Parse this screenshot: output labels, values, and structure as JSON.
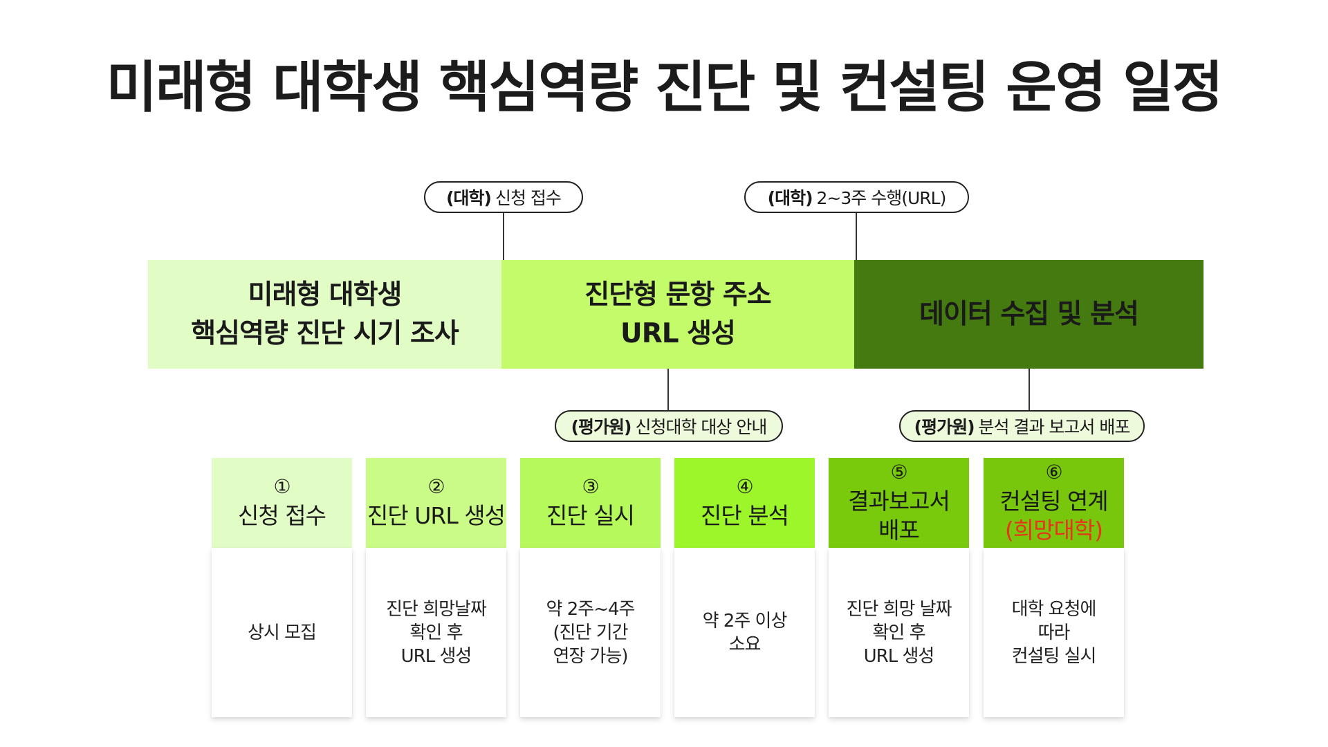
{
  "title": "미래형 대학생 핵심역량 진단 및 컨설팅 운영 일정",
  "top_pills": [
    {
      "tag": "(대학)",
      "text": "신청 접수"
    },
    {
      "tag": "(대학)",
      "text": "2~3주 수행(URL)"
    }
  ],
  "bands": [
    {
      "label": "미래형 대학생\n핵심역량 진단 시기 조사",
      "bg": "#e2fcc6",
      "color": "#1a1a1a"
    },
    {
      "label": "진단형 문항 주소\nURL 생성",
      "bg": "#c4fb6a",
      "color": "#1a1a1a"
    },
    {
      "label": "데이터 수집 및 분석",
      "bg": "#447a10",
      "color": "#1a1a1a"
    }
  ],
  "bottom_pills": [
    {
      "tag": "(평가원)",
      "text": "신청대학 대상 안내",
      "bg": "#eefadc"
    },
    {
      "tag": "(평가원)",
      "text": "분석 결과 보고서 배포",
      "bg": "#eefadc"
    }
  ],
  "steps": [
    {
      "num": "①",
      "title": "신청 접수",
      "title_accent": "",
      "desc": "상시 모집",
      "bg": "#e2fcc6"
    },
    {
      "num": "②",
      "title": "진단 URL 생성",
      "title_accent": "",
      "desc": "진단 희망날짜\n확인 후\nURL 생성",
      "bg": "#c9fb86"
    },
    {
      "num": "③",
      "title": "진단 실시",
      "title_accent": "",
      "desc": "약 2주~4주\n(진단 기간\n연장 가능)",
      "bg": "#b6f95a"
    },
    {
      "num": "④",
      "title": "진단 분석",
      "title_accent": "",
      "desc": "약 2주 이상\n소요",
      "bg": "#9cf62a"
    },
    {
      "num": "⑤",
      "title": "결과보고서\n배포",
      "title_accent": "",
      "desc": "진단 희망 날짜\n확인 후\nURL 생성",
      "bg": "#79c90c"
    },
    {
      "num": "⑥",
      "title": "컨설팅 연계",
      "title_accent": "(희망대학)",
      "desc": "대학 요청에\n따라\n컨설팅 실시",
      "bg": "#78c70c"
    }
  ],
  "colors": {
    "accent": "#e8341c",
    "line": "#333333"
  }
}
